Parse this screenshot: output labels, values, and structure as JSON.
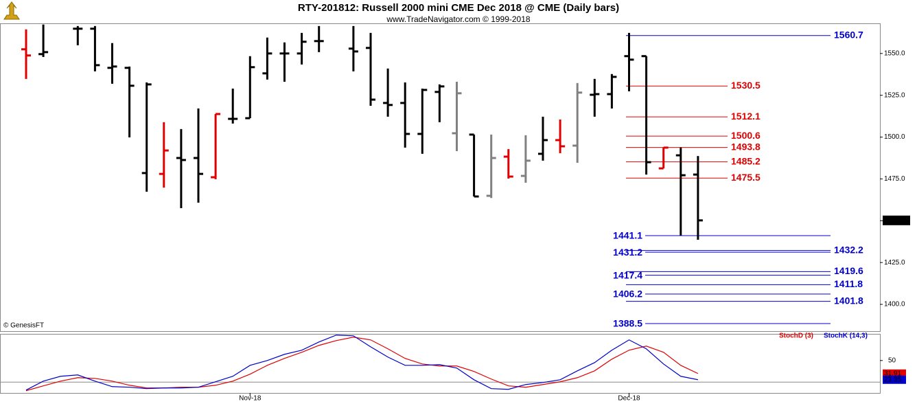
{
  "chart_data": [
    {
      "type": "ohlc",
      "title": "RTY-201812:  Russell 2000 mini CME Dec 2018 @ CME  (Daily bars)",
      "subtitle": "www.TradeNavigator.com © 1999-2018",
      "annotation": "© GenesisFT",
      "categories": [
        null,
        null,
        null,
        null,
        null,
        null,
        null,
        null,
        null,
        null,
        null,
        null,
        null,
        "Nov-18",
        null,
        null,
        null,
        null,
        null,
        null,
        null,
        null,
        null,
        null,
        null,
        null,
        null,
        null,
        null,
        null,
        null,
        null,
        null,
        null,
        null,
        "Dec-18",
        null,
        null,
        null,
        null
      ],
      "open": [
        1552.5,
        1549.6,
        null,
        1564.8,
        1564.8,
        1541.4,
        1541.4,
        1478.5,
        1478.0,
        1487.5,
        1487.5,
        1476.0,
        1510.9,
        1511.3,
        1538.1,
        1550.0,
        1550.0,
        1557.4,
        null,
        1552.9,
        1553.3,
        1520.4,
        1520.4,
        1501.9,
        1527.0,
        1502.3,
        1501.5,
        1464.9,
        1488.3,
        1476.8,
        1490.0,
        1498.2,
        1494.9,
        1525.3,
        1525.7,
        1548.4,
        1548.4,
        1481.3,
        1489.1,
        1477.6
      ],
      "high": [
        1564.4,
        1567.3,
        null,
        1566.4,
        1566.4,
        1556.2,
        1542.2,
        1532.7,
        1508.9,
        1504.8,
        1517.1,
        1513.8,
        1529.0,
        1548.4,
        1559.5,
        1556.6,
        1562.3,
        1566.4,
        null,
        1566.4,
        1562.3,
        1541.0,
        1532.7,
        1529.0,
        1531.5,
        1533.1,
        1501.5,
        1501.5,
        1492.8,
        1501.1,
        1512.2,
        1510.5,
        1532.3,
        1534.8,
        1537.7,
        1562.3,
        1548.4,
        1493.8,
        1493.8,
        1488.7
      ],
      "low": [
        1534.8,
        1547.9,
        null,
        1554.9,
        1539.3,
        1531.9,
        1499.8,
        1467.3,
        1469.8,
        1457.5,
        1460.8,
        1474.8,
        1508.1,
        1511.3,
        1534.4,
        1533.1,
        1543.4,
        1550.8,
        null,
        1539.3,
        1518.7,
        1512.2,
        1493.7,
        1490.0,
        1508.9,
        1491.6,
        1464.5,
        1463.6,
        1475.2,
        1472.7,
        1485.9,
        1490.4,
        1484.6,
        1512.2,
        1517.1,
        1527.4,
        1477.6,
        1481.3,
        1441.1,
        1438.6
      ],
      "close": [
        1548.8,
        1550.8,
        null,
        1564.8,
        1543.0,
        1542.2,
        1530.7,
        1531.5,
        1492.0,
        1486.3,
        1478.0,
        1513.8,
        1510.9,
        1541.8,
        1550.0,
        1550.0,
        1557.0,
        1557.4,
        null,
        1551.2,
        1522.4,
        1519.2,
        1501.9,
        1528.2,
        1530.3,
        1526.2,
        1464.5,
        1487.5,
        1476.4,
        1485.9,
        1498.2,
        1494.5,
        1526.6,
        1525.7,
        1536.0,
        1546.3,
        1485.0,
        1493.7,
        1477.2,
        1450.2
      ],
      "colors": [
        "#e00000",
        "#000000",
        null,
        "#000000",
        "#000000",
        "#000000",
        "#000000",
        "#000000",
        "#e00000",
        "#000000",
        "#000000",
        "#e00000",
        "#000000",
        "#000000",
        "#000000",
        "#000000",
        "#000000",
        "#000000",
        null,
        "#000000",
        "#000000",
        "#000000",
        "#000000",
        "#000000",
        "#000000",
        "#808080",
        "#000000",
        "#808080",
        "#e00000",
        "#808080",
        "#000000",
        "#e00000",
        "#808080",
        "#000000",
        "#000000",
        "#000000",
        "#000000",
        "#e00000",
        "#000000",
        "#000000"
      ],
      "ylim": [
        1384,
        1568
      ],
      "yticks": [
        {
          "value": 1400,
          "label": "1400.0"
        },
        {
          "value": 1425,
          "label": "1425.0"
        },
        {
          "value": 1450,
          "label": "1450.0"
        },
        {
          "value": 1475,
          "label": "1475.0"
        },
        {
          "value": 1500,
          "label": "1500.0"
        },
        {
          "value": 1525,
          "label": "1525.0"
        },
        {
          "value": 1550,
          "label": "1550.0"
        }
      ],
      "last_price": 1450.2,
      "levels": [
        {
          "value": 1560.7,
          "color": "#0000cc",
          "label_side": "right"
        },
        {
          "value": 1530.5,
          "color": "#e00000",
          "label_side": "right"
        },
        {
          "value": 1512.1,
          "color": "#e00000",
          "label_side": "right"
        },
        {
          "value": 1500.6,
          "color": "#e00000",
          "label_side": "right"
        },
        {
          "value": 1493.8,
          "color": "#e00000",
          "label_side": "right"
        },
        {
          "value": 1485.2,
          "color": "#e00000",
          "label_side": "right"
        },
        {
          "value": 1475.5,
          "color": "#e00000",
          "label_side": "right"
        },
        {
          "value": 1441.1,
          "color": "#0000cc",
          "label_side": "left"
        },
        {
          "value": 1432.2,
          "color": "#0000cc",
          "label_side": "right"
        },
        {
          "value": 1431.2,
          "color": "#0000cc",
          "label_side": "left"
        },
        {
          "value": 1419.6,
          "color": "#0000cc",
          "label_side": "right"
        },
        {
          "value": 1417.4,
          "color": "#0000cc",
          "label_side": "left"
        },
        {
          "value": 1411.8,
          "color": "#0000cc",
          "label_side": "right"
        },
        {
          "value": 1406.2,
          "color": "#0000cc",
          "label_side": "left"
        },
        {
          "value": 1401.8,
          "color": "#0000cc",
          "label_side": "right"
        },
        {
          "value": 1388.5,
          "color": "#0000cc",
          "label_side": "left"
        }
      ]
    },
    {
      "type": "line",
      "series": [
        {
          "name": "StochD (3)",
          "color": "#e00000",
          "values": [
            8.1,
            14.8,
            21.4,
            26.2,
            25.2,
            21.4,
            15.7,
            11.9,
            11.9,
            12.9,
            12.9,
            15.7,
            21.4,
            31.0,
            43.3,
            52.9,
            61.4,
            71.0,
            77.6,
            82.4,
            78.6,
            66.2,
            52.9,
            45.2,
            42.4,
            42.4,
            34.8,
            24.3,
            14.8,
            12.9,
            16.7,
            20.5,
            26.2,
            35.7,
            51.9,
            64.3,
            70.0,
            61.4,
            43.3,
            31.91
          ]
        },
        {
          "name": "StochK (14,3)",
          "color": "#0000cc",
          "values": [
            9.0,
            21.4,
            28.1,
            30.0,
            21.4,
            13.8,
            12.9,
            11.0,
            11.9,
            11.9,
            12.9,
            20.5,
            28.1,
            43.3,
            50.0,
            58.6,
            64.3,
            75.7,
            85.2,
            84.3,
            69.0,
            54.8,
            43.3,
            43.3,
            44.3,
            39.5,
            23.3,
            11.0,
            10.0,
            16.7,
            19.5,
            23.3,
            35.7,
            47.1,
            64.3,
            78.6,
            66.2,
            45.2,
            28.1,
            23.35
          ]
        }
      ],
      "ylim": [
        5,
        86
      ],
      "yticks": [
        50
      ],
      "reference_lines": [
        20
      ]
    }
  ]
}
